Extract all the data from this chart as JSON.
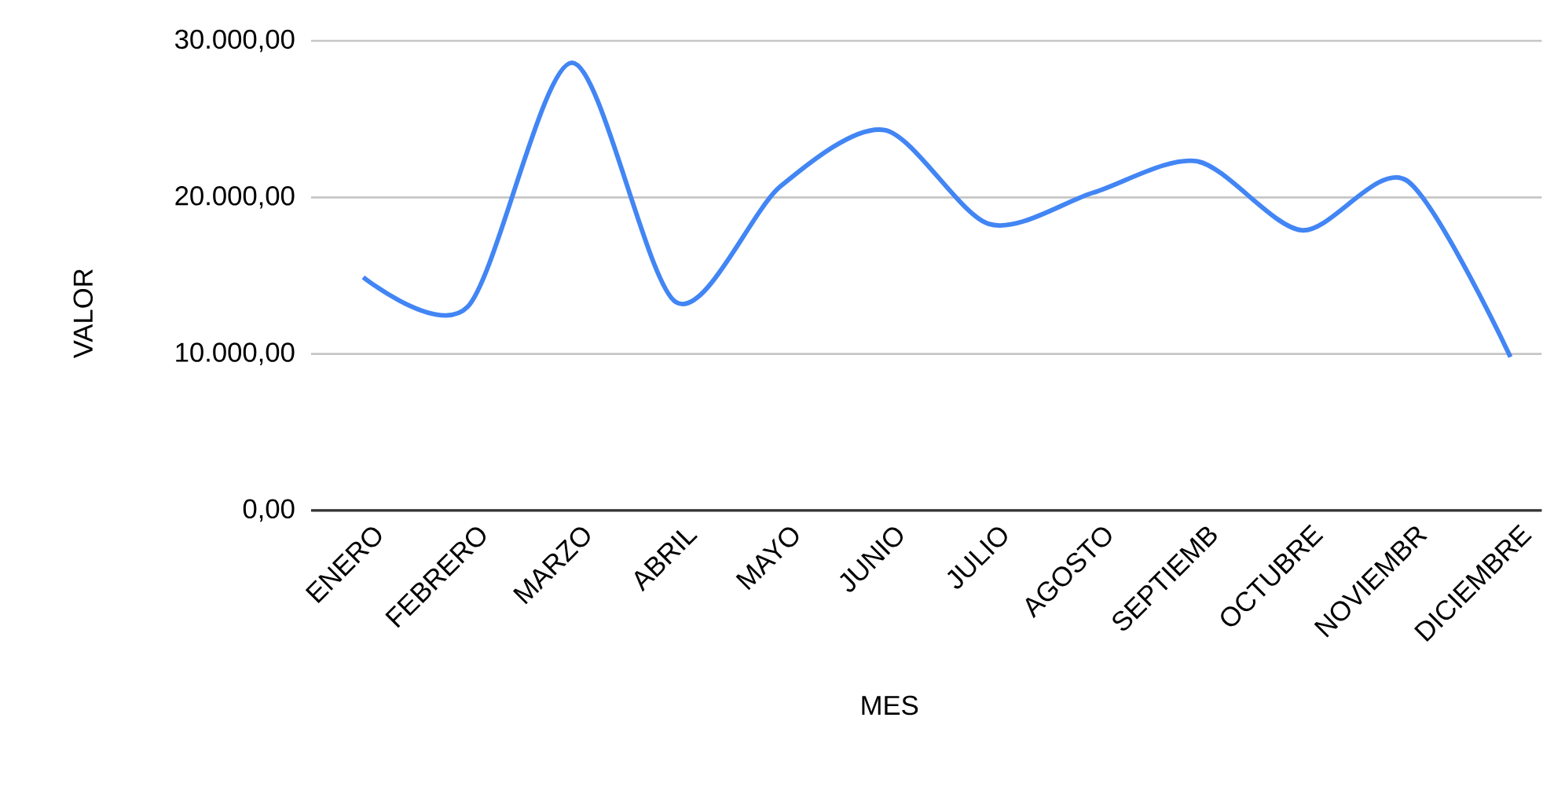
{
  "chart_data": {
    "type": "line",
    "xlabel": "MES",
    "ylabel": "VALOR",
    "categories": [
      "ENERO",
      "FEBRERO",
      "MARZO",
      "ABRIL",
      "MAYO",
      "JUNIO",
      "JULIO",
      "AGOSTO",
      "SEPTIEMB",
      "OCTUBRE",
      "NOVIEMBR",
      "DICIEMBRE"
    ],
    "series": [
      {
        "color": "#4285f4",
        "values": [
          14900,
          13000,
          28600,
          13300,
          20700,
          24300,
          18300,
          20300,
          22300,
          17900,
          21100,
          9800
        ]
      }
    ],
    "ylim": [
      0,
      30000
    ],
    "yticks": [
      {
        "value": 0,
        "label": "0,00"
      },
      {
        "value": 10000,
        "label": "10.000,00"
      },
      {
        "value": 20000,
        "label": "20.000,00"
      },
      {
        "value": 30000,
        "label": "30.000,00"
      }
    ],
    "grid": "y",
    "marker": "none",
    "line_style": "solid"
  }
}
